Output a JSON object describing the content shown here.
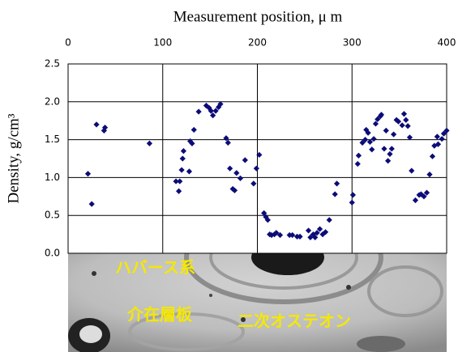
{
  "chart_data": {
    "type": "scatter",
    "title": "Measurement position, μ m",
    "y_label": "Density, g/cm³",
    "xlim": [
      0,
      400
    ],
    "xticks": [
      0,
      100,
      200,
      300,
      400
    ],
    "ylim": [
      0,
      2.5
    ],
    "yticks": [
      {
        "value": 0,
        "label": "0.0"
      },
      {
        "value": 0.5,
        "label": "0.5"
      },
      {
        "value": 1,
        "label": "1.0"
      },
      {
        "value": 1.5,
        "label": "1.5"
      },
      {
        "value": 2,
        "label": "2.0"
      },
      {
        "value": 2.5,
        "label": "2.5"
      }
    ],
    "grid": true,
    "x_axis_position": "top",
    "series": [
      {
        "color": "#0c0c78",
        "x": [
          21,
          25,
          30,
          38,
          39,
          86,
          114,
          117,
          118,
          120,
          121,
          122,
          128,
          129,
          131,
          133,
          138,
          146,
          149,
          151,
          153,
          156,
          159,
          161,
          167,
          169,
          171,
          174,
          176,
          178,
          182,
          187,
          196,
          199,
          202,
          207,
          209,
          211,
          213,
          215,
          218,
          220,
          224,
          234,
          237,
          242,
          245,
          254,
          256,
          259,
          261,
          263,
          266,
          269,
          272,
          276,
          282,
          284,
          300,
          301,
          306,
          307,
          311,
          314,
          315,
          317,
          319,
          321,
          323,
          325,
          327,
          330,
          331,
          334,
          336,
          338,
          340,
          342,
          344,
          347,
          349,
          353,
          355,
          357,
          359,
          361,
          363,
          367,
          371,
          373,
          376,
          379,
          382,
          385,
          387,
          390,
          391,
          395,
          397,
          400
        ],
        "values": [
          1.05,
          0.65,
          1.7,
          1.62,
          1.66,
          1.45,
          0.95,
          0.82,
          0.95,
          1.1,
          1.25,
          1.35,
          1.08,
          1.48,
          1.45,
          1.63,
          1.87,
          1.95,
          1.92,
          1.88,
          1.82,
          1.88,
          1.93,
          1.97,
          1.52,
          1.46,
          1.12,
          0.85,
          0.83,
          1.06,
          0.99,
          1.23,
          0.92,
          1.12,
          1.3,
          0.53,
          0.48,
          0.44,
          0.25,
          0.24,
          0.25,
          0.27,
          0.24,
          0.24,
          0.24,
          0.22,
          0.22,
          0.3,
          0.21,
          0.25,
          0.21,
          0.27,
          0.32,
          0.25,
          0.28,
          0.44,
          0.78,
          0.92,
          0.67,
          0.77,
          1.18,
          1.29,
          1.46,
          1.5,
          1.63,
          1.59,
          1.47,
          1.37,
          1.51,
          1.71,
          1.77,
          1.81,
          1.83,
          1.38,
          1.62,
          1.22,
          1.31,
          1.38,
          1.57,
          1.76,
          1.74,
          1.69,
          1.84,
          1.76,
          1.68,
          1.53,
          1.09,
          0.7,
          0.77,
          0.78,
          0.75,
          0.8,
          1.04,
          1.28,
          1.42,
          1.54,
          1.44,
          1.51,
          1.58,
          1.62
        ]
      }
    ],
    "annotations": [
      "ハバース系",
      "介在層板",
      "二次オステオン"
    ]
  }
}
